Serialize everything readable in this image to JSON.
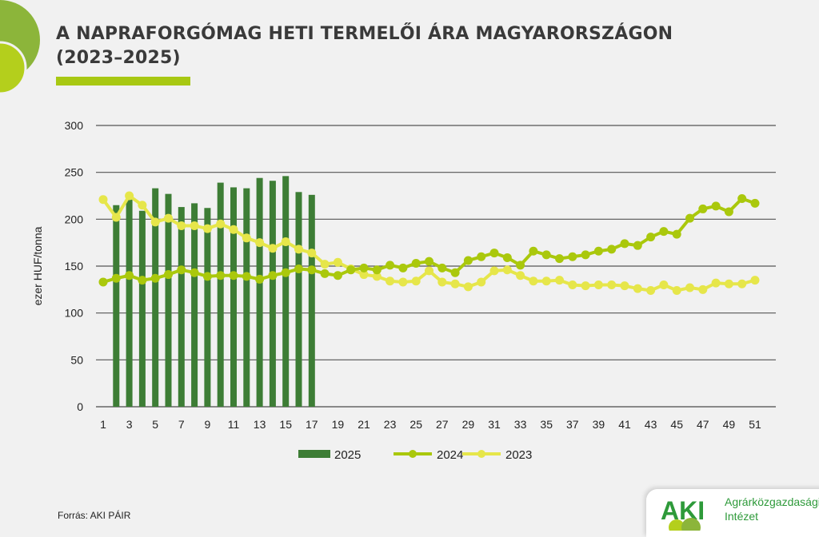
{
  "title_line1": "A NAPRAFORGÓMAG HETI TERMELŐI ÁRA MAGYARORSZÁGON",
  "title_line2": "(2023–2025)",
  "source": "Forrás: AKI PÁIR",
  "logo": {
    "mark": "AKI",
    "line1": "Agrárközgazdasági",
    "line2": "Intézet"
  },
  "colors": {
    "accent": "#a8c813",
    "bar2025": "#3d7d35",
    "line2024": "#aac80c",
    "line2023": "#e6e64a"
  },
  "chart_data": {
    "type": "bar+line",
    "ylabel": "ezer HUF/tonna",
    "ylim": [
      0,
      300
    ],
    "yticks": [
      0,
      50,
      100,
      150,
      200,
      250,
      300
    ],
    "xticks": [
      1,
      3,
      5,
      7,
      9,
      11,
      13,
      15,
      17,
      19,
      21,
      23,
      25,
      27,
      29,
      31,
      33,
      35,
      37,
      39,
      41,
      43,
      45,
      47,
      49,
      51
    ],
    "grid": true,
    "legend": "bottom",
    "series": [
      {
        "name": "2025",
        "type": "bar",
        "weeks": [
          2,
          3,
          4,
          5,
          6,
          7,
          8,
          9,
          10,
          11,
          12,
          13,
          14,
          15,
          16,
          17
        ],
        "values": [
          215,
          221,
          209,
          233,
          227,
          213,
          217,
          212,
          239,
          234,
          233,
          244,
          241,
          246,
          229,
          226
        ]
      },
      {
        "name": "2024",
        "type": "line",
        "values": [
          133,
          137,
          140,
          135,
          137,
          141,
          146,
          143,
          139,
          140,
          140,
          139,
          136,
          140,
          143,
          147,
          146,
          142,
          140,
          146,
          148,
          146,
          151,
          148,
          153,
          155,
          148,
          143,
          156,
          160,
          164,
          159,
          151,
          166,
          162,
          158,
          160,
          162,
          166,
          168,
          174,
          172,
          181,
          187,
          184,
          201,
          211,
          214,
          208,
          222,
          217
        ]
      },
      {
        "name": "2023",
        "type": "line",
        "values": [
          221,
          202,
          225,
          215,
          197,
          201,
          193,
          193,
          190,
          195,
          189,
          180,
          175,
          169,
          176,
          168,
          164,
          152,
          154,
          147,
          141,
          139,
          134,
          133,
          134,
          145,
          133,
          131,
          128,
          133,
          145,
          146,
          140,
          134,
          134,
          135,
          130,
          129,
          130,
          130,
          129,
          126,
          124,
          130,
          124,
          127,
          125,
          132,
          131,
          131,
          135
        ]
      }
    ]
  }
}
